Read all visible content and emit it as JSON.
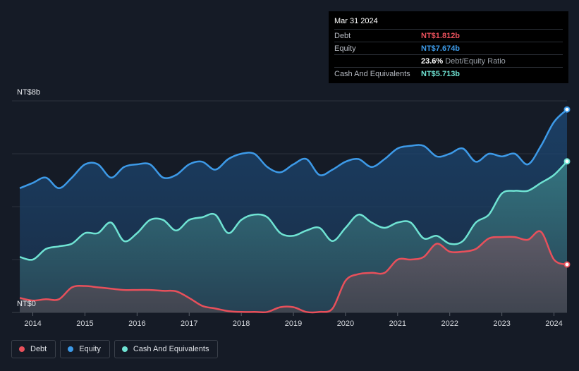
{
  "tooltip": {
    "date": "Mar 31 2024",
    "rows": [
      {
        "label": "Debt",
        "value": "NT$1.812b",
        "color": "#e8505b"
      },
      {
        "label": "Equity",
        "value": "NT$7.674b",
        "color": "#3d9ae8"
      },
      {
        "label": "",
        "value": "23.6%",
        "sub": "Debt/Equity Ratio",
        "color": "#ffffff"
      },
      {
        "label": "Cash And Equivalents",
        "value": "NT$5.713b",
        "color": "#6fe3d3"
      }
    ]
  },
  "chart_data": {
    "type": "area",
    "y_top_label": "NT$8b",
    "y_bottom_label": "NT$0",
    "ylim": [
      0,
      8
    ],
    "xlim": [
      2013.6,
      2024.25
    ],
    "x_ticks": [
      "2014",
      "2015",
      "2016",
      "2017",
      "2018",
      "2019",
      "2020",
      "2021",
      "2022",
      "2023",
      "2024"
    ],
    "grid": true,
    "legend_position": "bottom-left",
    "series": [
      {
        "name": "Equity",
        "color": "#3d9ae8",
        "x": [
          2013.75,
          2014.0,
          2014.25,
          2014.5,
          2014.75,
          2015.0,
          2015.25,
          2015.5,
          2015.75,
          2016.0,
          2016.25,
          2016.5,
          2016.75,
          2017.0,
          2017.25,
          2017.5,
          2017.75,
          2018.0,
          2018.25,
          2018.5,
          2018.75,
          2019.0,
          2019.25,
          2019.5,
          2019.75,
          2020.0,
          2020.25,
          2020.5,
          2020.75,
          2021.0,
          2021.25,
          2021.5,
          2021.75,
          2022.0,
          2022.25,
          2022.5,
          2022.75,
          2023.0,
          2023.25,
          2023.5,
          2023.75,
          2024.0,
          2024.25
        ],
        "values": [
          4.7,
          4.9,
          5.1,
          4.7,
          5.1,
          5.6,
          5.6,
          5.1,
          5.5,
          5.6,
          5.6,
          5.1,
          5.2,
          5.6,
          5.7,
          5.4,
          5.8,
          6.0,
          6.0,
          5.5,
          5.3,
          5.6,
          5.8,
          5.2,
          5.4,
          5.7,
          5.8,
          5.5,
          5.8,
          6.2,
          6.3,
          6.3,
          5.9,
          6.0,
          6.2,
          5.7,
          6.0,
          5.9,
          6.0,
          5.6,
          6.3,
          7.2,
          7.674
        ]
      },
      {
        "name": "Cash And Equivalents",
        "color": "#6fe3d3",
        "x": [
          2013.75,
          2014.0,
          2014.25,
          2014.5,
          2014.75,
          2015.0,
          2015.25,
          2015.5,
          2015.75,
          2016.0,
          2016.25,
          2016.5,
          2016.75,
          2017.0,
          2017.25,
          2017.5,
          2017.75,
          2018.0,
          2018.25,
          2018.5,
          2018.75,
          2019.0,
          2019.25,
          2019.5,
          2019.75,
          2020.0,
          2020.25,
          2020.5,
          2020.75,
          2021.0,
          2021.25,
          2021.5,
          2021.75,
          2022.0,
          2022.25,
          2022.5,
          2022.75,
          2023.0,
          2023.25,
          2023.5,
          2023.75,
          2024.0,
          2024.25
        ],
        "values": [
          2.1,
          2.0,
          2.4,
          2.5,
          2.6,
          3.0,
          3.0,
          3.4,
          2.7,
          3.0,
          3.5,
          3.5,
          3.1,
          3.5,
          3.6,
          3.7,
          3.0,
          3.5,
          3.7,
          3.6,
          3.0,
          2.9,
          3.1,
          3.2,
          2.7,
          3.2,
          3.7,
          3.4,
          3.2,
          3.4,
          3.4,
          2.8,
          2.9,
          2.6,
          2.7,
          3.4,
          3.7,
          4.5,
          4.6,
          4.6,
          4.9,
          5.2,
          5.713
        ]
      },
      {
        "name": "Debt",
        "color": "#e8505b",
        "x": [
          2013.75,
          2014.0,
          2014.25,
          2014.5,
          2014.75,
          2015.0,
          2015.25,
          2015.5,
          2015.75,
          2016.0,
          2016.25,
          2016.5,
          2016.75,
          2017.0,
          2017.25,
          2017.5,
          2017.75,
          2018.0,
          2018.25,
          2018.5,
          2018.75,
          2019.0,
          2019.25,
          2019.5,
          2019.75,
          2020.0,
          2020.25,
          2020.5,
          2020.75,
          2021.0,
          2021.25,
          2021.5,
          2021.75,
          2022.0,
          2022.25,
          2022.5,
          2022.75,
          2023.0,
          2023.25,
          2023.5,
          2023.75,
          2024.0,
          2024.25
        ],
        "values": [
          0.55,
          0.45,
          0.5,
          0.5,
          0.95,
          1.0,
          0.95,
          0.9,
          0.85,
          0.85,
          0.85,
          0.82,
          0.8,
          0.55,
          0.25,
          0.15,
          0.05,
          0.02,
          0.02,
          0.02,
          0.2,
          0.2,
          0.02,
          0.02,
          0.15,
          1.2,
          1.45,
          1.5,
          1.5,
          2.0,
          2.0,
          2.1,
          2.6,
          2.3,
          2.3,
          2.4,
          2.8,
          2.85,
          2.85,
          2.75,
          3.05,
          2.0,
          1.812
        ]
      }
    ]
  },
  "legend": [
    {
      "label": "Debt",
      "color": "#e8505b"
    },
    {
      "label": "Equity",
      "color": "#3d9ae8"
    },
    {
      "label": "Cash And Equivalents",
      "color": "#6fe3d3"
    }
  ]
}
